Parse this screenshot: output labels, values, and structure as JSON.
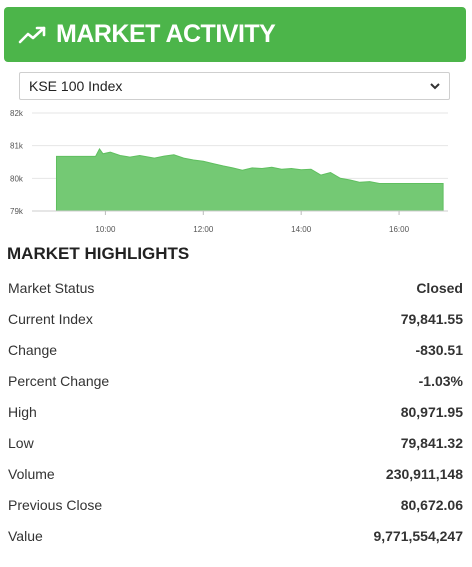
{
  "header": {
    "title": "MARKET ACTIVITY",
    "icon": "trending-up-icon",
    "color": "#4cb54a"
  },
  "index_select": {
    "selected": "KSE 100 Index"
  },
  "chart_data": {
    "type": "area",
    "color": "#74c974",
    "y_ticks": [
      "82k",
      "81k",
      "80k",
      "79k"
    ],
    "ylim": [
      79000,
      82000
    ],
    "x_ticks": [
      "10:00",
      "12:00",
      "14:00",
      "16:00"
    ],
    "x_tick_hours": [
      10,
      12,
      14,
      16
    ],
    "xlim": [
      8.5,
      17
    ],
    "points": [
      [
        9.0,
        80672
      ],
      [
        9.8,
        80672
      ],
      [
        9.88,
        80900
      ],
      [
        9.95,
        80750
      ],
      [
        10.1,
        80800
      ],
      [
        10.3,
        80700
      ],
      [
        10.5,
        80650
      ],
      [
        10.7,
        80700
      ],
      [
        11.0,
        80620
      ],
      [
        11.2,
        80680
      ],
      [
        11.4,
        80720
      ],
      [
        11.6,
        80620
      ],
      [
        11.8,
        80560
      ],
      [
        12.0,
        80520
      ],
      [
        12.2,
        80450
      ],
      [
        12.4,
        80380
      ],
      [
        12.6,
        80320
      ],
      [
        12.8,
        80250
      ],
      [
        13.0,
        80320
      ],
      [
        13.2,
        80300
      ],
      [
        13.4,
        80340
      ],
      [
        13.6,
        80280
      ],
      [
        13.8,
        80300
      ],
      [
        14.0,
        80260
      ],
      [
        14.2,
        80280
      ],
      [
        14.4,
        80100
      ],
      [
        14.6,
        80180
      ],
      [
        14.8,
        80000
      ],
      [
        15.0,
        79950
      ],
      [
        15.2,
        79880
      ],
      [
        15.4,
        79900
      ],
      [
        15.6,
        79841
      ],
      [
        15.8,
        79841
      ],
      [
        16.9,
        79841
      ]
    ]
  },
  "highlights": {
    "title": "MARKET HIGHLIGHTS",
    "rows": [
      {
        "label": "Market Status",
        "value": "Closed"
      },
      {
        "label": "Current Index",
        "value": "79,841.55"
      },
      {
        "label": "Change",
        "value": "-830.51"
      },
      {
        "label": "Percent Change",
        "value": "-1.03%"
      },
      {
        "label": "High",
        "value": "80,971.95"
      },
      {
        "label": "Low",
        "value": "79,841.32"
      },
      {
        "label": "Volume",
        "value": "230,911,148"
      },
      {
        "label": "Previous Close",
        "value": "80,672.06"
      },
      {
        "label": "Value",
        "value": "9,771,554,247"
      }
    ]
  }
}
